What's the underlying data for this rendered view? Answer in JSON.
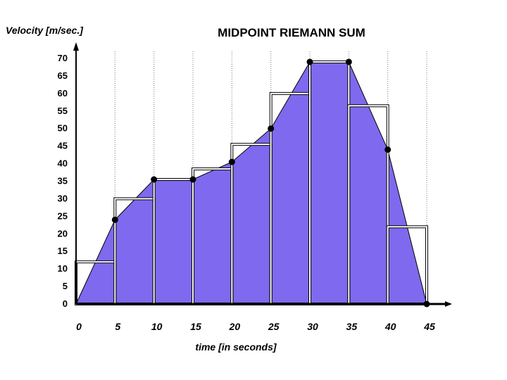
{
  "chart_data": {
    "type": "area",
    "title": "MIDPOINT RIEMANN SUM",
    "xlabel": "time [in seconds]",
    "ylabel": "Velocity [m/sec.]",
    "xlim": [
      0,
      45
    ],
    "ylim": [
      0,
      70
    ],
    "x_ticks": [
      "0",
      "5",
      "10",
      "15",
      "20",
      "25",
      "30",
      "35",
      "40",
      "45"
    ],
    "y_ticks": [
      "0",
      "5",
      "10",
      "15",
      "20",
      "25",
      "30",
      "35",
      "40",
      "45",
      "50",
      "55",
      "60",
      "65",
      "70"
    ],
    "grid": "vertical dotted",
    "colors": {
      "fill": "#7f69ee",
      "line": "#000000"
    },
    "series": [
      {
        "type": "area",
        "x": [
          0,
          5,
          10,
          15,
          20,
          25,
          30,
          35,
          40,
          45
        ],
        "values": [
          0,
          24,
          35.5,
          35.5,
          40.5,
          50,
          69,
          69,
          44,
          0
        ]
      }
    ],
    "midpoint_rectangles": [
      {
        "x0": 0,
        "x1": 5,
        "height": 12
      },
      {
        "x0": 5,
        "x1": 10,
        "height": 30
      },
      {
        "x0": 10,
        "x1": 15,
        "height": 35.5
      },
      {
        "x0": 15,
        "x1": 20,
        "height": 38.5
      },
      {
        "x0": 20,
        "x1": 25,
        "height": 45.5
      },
      {
        "x0": 25,
        "x1": 30,
        "height": 60
      },
      {
        "x0": 30,
        "x1": 35,
        "height": 69
      },
      {
        "x0": 35,
        "x1": 40,
        "height": 56.5
      },
      {
        "x0": 40,
        "x1": 45,
        "height": 22
      }
    ]
  }
}
